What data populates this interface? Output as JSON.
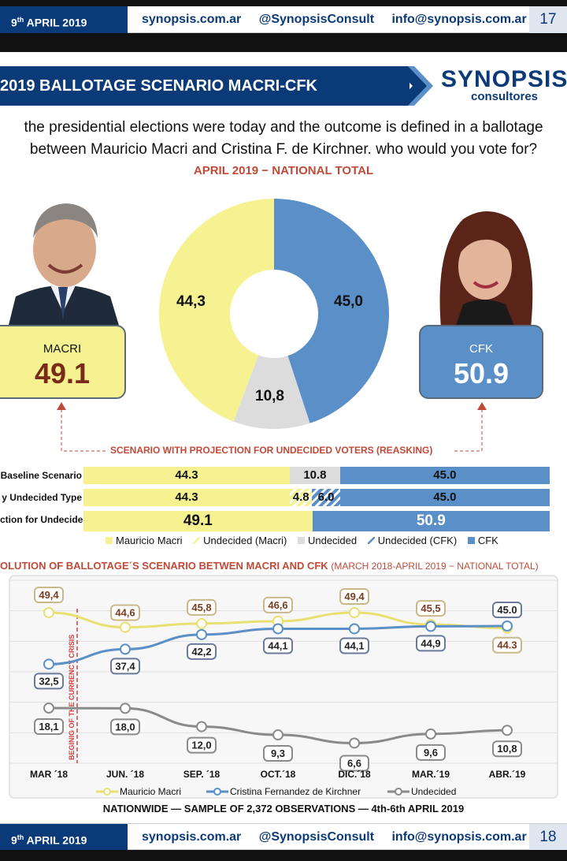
{
  "header": {
    "date_day": "9",
    "date_sup": "th",
    "date_rest": "APRIL 2019",
    "site": "synopsis.com.ar",
    "handle": "@SynopsisConsult",
    "email": "info@synopsis.com.ar",
    "page_prev": "17",
    "page": "18"
  },
  "title": "2019 BALLOTAGE SCENARIO MACRI-CFK",
  "logo": {
    "name": "SYNOPSIS",
    "sub": "consultores"
  },
  "question": {
    "line1": "the presidential elections were today and the outcome is defined in a ballotage",
    "line2": "between Mauricio Macri and Cristina F. de Kirchner. who would you vote for?"
  },
  "subtitle": "APRIL 2019 − NATIONAL TOTAL",
  "macri": {
    "name": "MACRI",
    "value": "49.1"
  },
  "cfk": {
    "name": "CFK",
    "value": "50.9"
  },
  "projection_label": "SCENARIO WITH PROJECTION FOR UNDECIDED VOTERS (REASKING)",
  "colors": {
    "macri": "#f6f291",
    "cfk": "#5b8fc7",
    "undecided": "#dcdcdc",
    "navy": "#0b3a78",
    "accent": "#c04a3a"
  },
  "chart_data": [
    {
      "type": "pie",
      "slices": [
        {
          "name": "CFK",
          "value": 45.0,
          "label": "45,0"
        },
        {
          "name": "Undecided",
          "value": 10.8,
          "label": "10,8"
        },
        {
          "name": "Mauricio Macri",
          "value": 44.3,
          "label": "44,3"
        }
      ],
      "donut": true
    },
    {
      "type": "bar",
      "stacked": true,
      "orientation": "horizontal",
      "rows": [
        {
          "label": "Baseline Scenario",
          "segments": [
            {
              "name": "Mauricio Macri",
              "value": 44.3,
              "label": "44.3"
            },
            {
              "name": "Undecided",
              "value": 10.8,
              "label": "10.8"
            },
            {
              "name": "CFK",
              "value": 45.0,
              "label": "45.0"
            }
          ]
        },
        {
          "label": "y Undecided Type",
          "segments": [
            {
              "name": "Mauricio Macri",
              "value": 44.3,
              "label": "44.3"
            },
            {
              "name": "Undecided (Macri)",
              "value": 4.8,
              "label": "4.8"
            },
            {
              "name": "Undecided (CFK)",
              "value": 6.0,
              "label": "6.0"
            },
            {
              "name": "CFK",
              "value": 45.0,
              "label": "45.0"
            }
          ]
        },
        {
          "label": "ction for Undecided",
          "segments": [
            {
              "name": "Mauricio Macri",
              "value": 49.1,
              "label": "49.1"
            },
            {
              "name": "CFK",
              "value": 50.9,
              "label": "50.9"
            }
          ]
        }
      ],
      "legend": [
        "Mauricio Macri",
        "Undecided (Macri)",
        "Undecided",
        "Undecided (CFK)",
        "CFK"
      ]
    },
    {
      "type": "line",
      "title": "OLUTION OF BALLOTAGE´S SCENARIO BETWEN MACRI AND CFK",
      "title_note": "(MARCH 2018-APRIL 2019 − NATIONAL TOTAL)",
      "categories": [
        "MAR ´18",
        "JUN. ´18",
        "SEP. ´18",
        "OCT.´18",
        "DIC.´18",
        "MAR.´19",
        "ABR.´19"
      ],
      "ylim": [
        0,
        60
      ],
      "series": [
        {
          "name": "Mauricio Macri",
          "values": [
            49.4,
            44.6,
            45.8,
            46.6,
            49.4,
            45.5,
            44.3
          ],
          "labels": [
            "49,4",
            "44,6",
            "45,8",
            "46,6",
            "49,4",
            "45,5",
            "44.3"
          ]
        },
        {
          "name": "Cristina Fernandez de Kirchner",
          "values": [
            32.5,
            37.4,
            42.2,
            44.1,
            44.1,
            44.9,
            45.0
          ],
          "labels": [
            "32,5",
            "37,4",
            "42,2",
            "44,1",
            "44,1",
            "44,9",
            "45.0"
          ]
        },
        {
          "name": "Undecided",
          "values": [
            18.1,
            18.0,
            12.0,
            9.3,
            6.6,
            9.6,
            10.8
          ],
          "labels": [
            "18,1",
            "18,0",
            "12,0",
            "9,3",
            "6,6",
            "9,6",
            "10,8"
          ]
        }
      ],
      "annotation": "BEGINIG OF THE CURRENCY CRISIS",
      "legend_position": "bottom"
    }
  ],
  "footer": "NATIONWIDE — SAMPLE OF 2,372 OBSERVATIONS — 4th-6th APRIL 2019"
}
